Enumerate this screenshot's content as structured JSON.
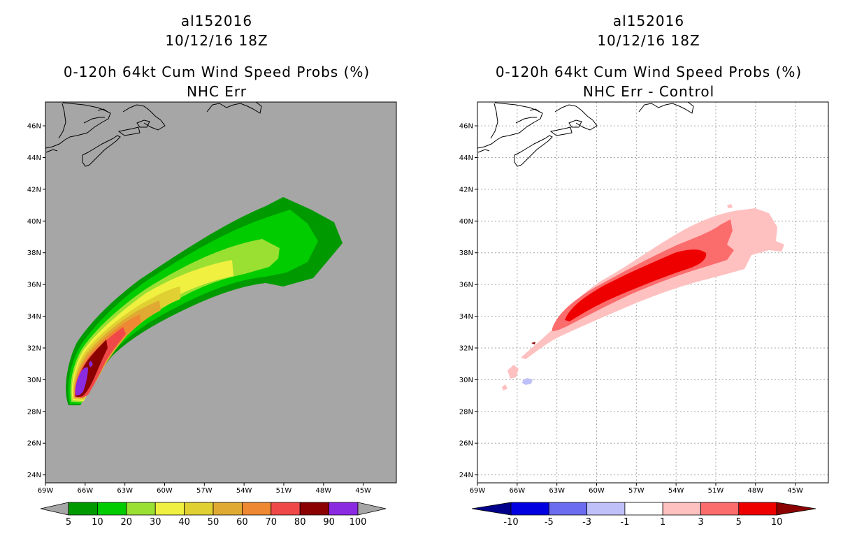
{
  "charts": [
    {
      "title_lines": [
        "al152016",
        "10/12/16 18Z",
        "0-120h 64kt Cum Wind Speed Probs (%)",
        "NHC Err"
      ],
      "colorbar_labels": [
        "5",
        "10",
        "20",
        "30",
        "40",
        "50",
        "60",
        "70",
        "80",
        "90",
        "100"
      ],
      "colorbar_colors": [
        "#009a00",
        "#00cc00",
        "#99e033",
        "#f0f040",
        "#e0d032",
        "#e0aa32",
        "#ee8833",
        "#f04848",
        "#8b0000",
        "#8a2be2"
      ],
      "end_colors": [
        "#a6a6a6",
        "#a6a6a6"
      ],
      "background": "#a6a6a6"
    },
    {
      "title_lines": [
        "al152016",
        "10/12/16 18Z",
        "0-120h 64kt Cum Wind Speed Probs (%)",
        "NHC Err - Control"
      ],
      "colorbar_labels": [
        "-10",
        "-5",
        "-3",
        "-1",
        "1",
        "3",
        "5",
        "10"
      ],
      "colorbar_colors": [
        "#0000e0",
        "#6c6cf0",
        "#c0c0f8",
        "#ffffff",
        "#ffc0c0",
        "#fb6c6c",
        "#ee0000"
      ],
      "end_colors": [
        "#00008b",
        "#8b0000"
      ],
      "background": "#ffffff"
    }
  ],
  "chart_data": [
    {
      "type": "heatmap",
      "title": "al152016 10/12/16 18Z 0-120h 64kt Cum Wind Speed Probs (%) NHC Err",
      "variable": "Cumulative 64kt wind speed probability (%)",
      "storm": "al152016",
      "valid": "10/12/16 18Z",
      "x_ticks": [
        "69W",
        "66W",
        "63W",
        "60W",
        "57W",
        "54W",
        "51W",
        "48W",
        "45W"
      ],
      "y_ticks": [
        "24N",
        "26N",
        "28N",
        "30N",
        "32N",
        "34N",
        "36N",
        "38N",
        "40N",
        "42N",
        "44N",
        "46N"
      ],
      "xlim": [
        -69,
        -42.5
      ],
      "ylim": [
        23.5,
        47.5
      ],
      "levels": [
        5,
        10,
        20,
        30,
        40,
        50,
        60,
        70,
        80,
        90,
        100
      ],
      "peak_location": {
        "lon": -66,
        "lat": 29.5,
        "value_range": "90-100"
      },
      "swath": "Band extending from near 66W 29N northeastward to about 47W 39N"
    },
    {
      "type": "heatmap",
      "title": "al152016 10/12/16 18Z 0-120h 64kt Cum Wind Speed Probs (%) NHC Err - Control",
      "variable": "Difference in probability (%)",
      "x_ticks": [
        "69W",
        "66W",
        "63W",
        "60W",
        "57W",
        "54W",
        "51W",
        "48W",
        "45W"
      ],
      "y_ticks": [
        "24N",
        "26N",
        "28N",
        "30N",
        "32N",
        "34N",
        "36N",
        "38N",
        "40N",
        "42N",
        "44N",
        "46N"
      ],
      "xlim": [
        -69,
        -42.5
      ],
      "ylim": [
        23.5,
        47.5
      ],
      "levels": [
        -10,
        -5,
        -3,
        -1,
        1,
        3,
        5,
        10
      ],
      "positive_max_range": "5-10",
      "positive_max_location": {
        "lon": -58,
        "lat": 36
      },
      "negative_area": {
        "lon": -65.3,
        "lat": 30,
        "value_range": "-3 to -1"
      }
    }
  ]
}
